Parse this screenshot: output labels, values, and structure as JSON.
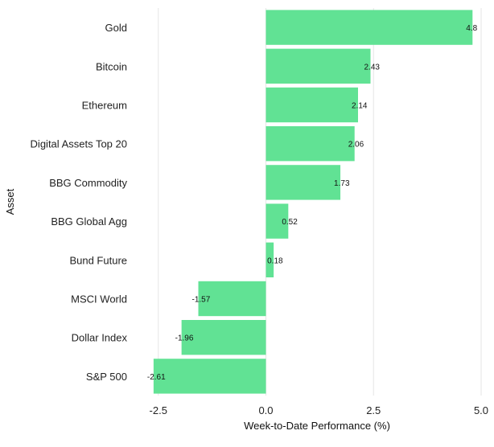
{
  "chart_data": {
    "type": "bar",
    "orientation": "horizontal",
    "categories": [
      "Gold",
      "Bitcoin",
      "Ethereum",
      "Digital Assets Top 20",
      "BBG Commodity",
      "BBG Global Agg",
      "Bund Future",
      "MSCI World",
      "Dollar Index",
      "S&P 500"
    ],
    "values": [
      4.8,
      2.43,
      2.14,
      2.06,
      1.73,
      0.52,
      0.18,
      -1.57,
      -1.96,
      -2.61
    ],
    "value_labels": [
      "4.8",
      "2.43",
      "2.14",
      "2.06",
      "1.73",
      "0.52",
      "0.18",
      "-1.57",
      "-1.96",
      "-2.61"
    ],
    "xlabel": "Week-to-Date Performance (%)",
    "ylabel": "Asset",
    "xlim": [
      -3.0,
      5.0
    ],
    "xticks": [
      -2.5,
      0.0,
      2.5,
      5.0
    ],
    "xtick_labels": [
      "-2.5",
      "0.0",
      "2.5",
      "5.0"
    ],
    "grid": "vertical",
    "bar_color": "#61e294",
    "grid_color": "#e6e6e6"
  }
}
